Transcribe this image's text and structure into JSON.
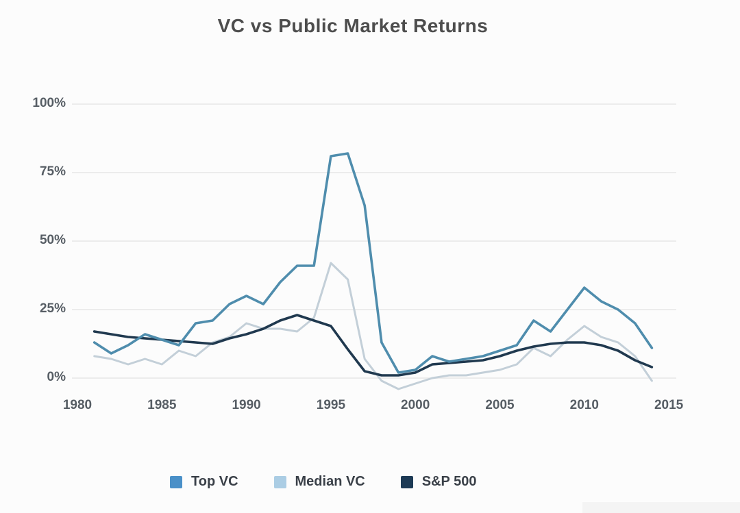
{
  "title": "VC vs Public Market Returns",
  "colors": {
    "background": "#fcfcfc",
    "grid": "#ececec",
    "axis_text": "#565d64",
    "title_text": "#4d4d4d",
    "top_vc_line": "#4f8dad",
    "median_vc_line": "#c3cfd8",
    "sp500_line": "#20394f",
    "top_vc_swatch": "#4a90c8",
    "median_vc_swatch": "#abcde4",
    "sp500_swatch": "#1d3a55"
  },
  "y_axis": {
    "ticks": [
      "100%",
      "75%",
      "50%",
      "25%",
      "0%"
    ],
    "tick_values": [
      100,
      75,
      50,
      25,
      0
    ]
  },
  "x_axis": {
    "ticks": [
      "1980",
      "1985",
      "1990",
      "1995",
      "2000",
      "2005",
      "2010",
      "2015"
    ],
    "tick_values": [
      1980,
      1985,
      1990,
      1995,
      2000,
      2005,
      2010,
      2015
    ]
  },
  "legend": [
    {
      "label": "Top VC",
      "color": "#4a90c8"
    },
    {
      "label": "Median VC",
      "color": "#abcde4"
    },
    {
      "label": "S&P 500",
      "color": "#1d3a55"
    }
  ],
  "chart_data": {
    "type": "line",
    "title": "VC vs Public Market Returns",
    "xlabel": "",
    "ylabel": "",
    "y_unit": "%",
    "xlim": [
      1980,
      2015
    ],
    "ylim": [
      0,
      100
    ],
    "grid": "horizontal",
    "legend_position": "bottom",
    "x": [
      1981,
      1982,
      1983,
      1984,
      1985,
      1986,
      1987,
      1988,
      1989,
      1990,
      1991,
      1992,
      1993,
      1994,
      1995,
      1996,
      1997,
      1998,
      1999,
      2000,
      2001,
      2002,
      2003,
      2004,
      2005,
      2006,
      2007,
      2008,
      2009,
      2010,
      2011,
      2012,
      2013,
      2014
    ],
    "series": [
      {
        "name": "Top VC",
        "color": "#4f8dad",
        "values": [
          13,
          9,
          12,
          16,
          14,
          12,
          20,
          21,
          27,
          30,
          27,
          35,
          41,
          41,
          81,
          82,
          63,
          13,
          2,
          3,
          8,
          6,
          7,
          8,
          10,
          12,
          21,
          17,
          25,
          33,
          28,
          25,
          20,
          11
        ]
      },
      {
        "name": "Median VC",
        "color": "#c3cfd8",
        "values": [
          8,
          7,
          5,
          7,
          5,
          10,
          8,
          13,
          15,
          20,
          18,
          18,
          17,
          22,
          42,
          36,
          7,
          -1,
          -4,
          -2,
          0,
          1,
          1,
          2,
          3,
          5,
          11,
          8,
          14,
          19,
          15,
          13,
          8,
          -1
        ]
      },
      {
        "name": "S&P 500",
        "color": "#20394f",
        "values": [
          17,
          16,
          15,
          14.5,
          14,
          13.5,
          13,
          12.5,
          14.5,
          16,
          18,
          21,
          23,
          21,
          19,
          10.5,
          2.5,
          1,
          1,
          2,
          5,
          5.5,
          6,
          6.5,
          8,
          10,
          11.5,
          12.5,
          13,
          13,
          12,
          10,
          6.5,
          4
        ]
      }
    ]
  }
}
